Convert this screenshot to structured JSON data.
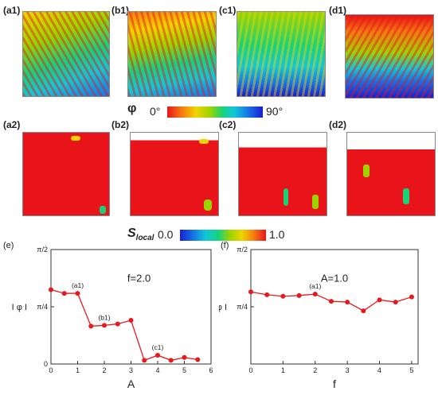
{
  "top_row": {
    "labels": [
      "(a1)",
      "(b1)",
      "(c1)",
      "(d1)"
    ]
  },
  "orientation_colorbar": {
    "symbol": "φ",
    "min_label": "0°",
    "max_label": "90°"
  },
  "mid_row": {
    "labels": [
      "(a2)",
      "(b2)",
      "(c2)",
      "(d2)"
    ]
  },
  "order_colorbar": {
    "symbol": "S",
    "subscript": "local",
    "min_label": "0.0",
    "max_label": "1.0"
  },
  "chart_data": [
    {
      "panel": "(e)",
      "type": "line",
      "annotation": "f=2.0",
      "xlabel": "A",
      "ylabel": "I φ I",
      "xlim": [
        0,
        6
      ],
      "xticks": [
        "0",
        "1",
        "2",
        "3",
        "4",
        "5",
        "6"
      ],
      "yticks": [
        "0",
        "π/4",
        "π/2"
      ],
      "ylim": [
        0,
        1.5708
      ],
      "x": [
        0,
        0.5,
        1.0,
        1.5,
        2.0,
        2.5,
        3.0,
        3.5,
        4.0,
        4.5,
        5.0,
        5.5
      ],
      "y": [
        1.02,
        0.97,
        0.97,
        0.52,
        0.53,
        0.55,
        0.6,
        0.05,
        0.12,
        0.05,
        0.09,
        0.06
      ],
      "point_labels": [
        {
          "x": 1.0,
          "text": "(a1)"
        },
        {
          "x": 2.0,
          "text": "(b1)"
        },
        {
          "x": 4.0,
          "text": "(c1)"
        }
      ],
      "color": "#e8181c"
    },
    {
      "panel": "(f)",
      "type": "line",
      "annotation": "A=1.0",
      "xlabel": "f",
      "ylabel": "I φ I",
      "xlim": [
        0,
        5.2
      ],
      "xticks": [
        "0",
        "1",
        "2",
        "3",
        "4",
        "5"
      ],
      "yticks": [
        "π/4",
        "π/2"
      ],
      "ylim": [
        0,
        1.5708
      ],
      "x": [
        0,
        0.5,
        1.0,
        1.5,
        2.0,
        2.5,
        3.0,
        3.5,
        4.0,
        4.5,
        5.0
      ],
      "y": [
        0.99,
        0.95,
        0.93,
        0.94,
        0.96,
        0.86,
        0.85,
        0.73,
        0.88,
        0.85,
        0.92
      ],
      "point_labels": [
        {
          "x": 2.0,
          "text": "(a1)"
        }
      ],
      "color": "#e8181c"
    }
  ]
}
